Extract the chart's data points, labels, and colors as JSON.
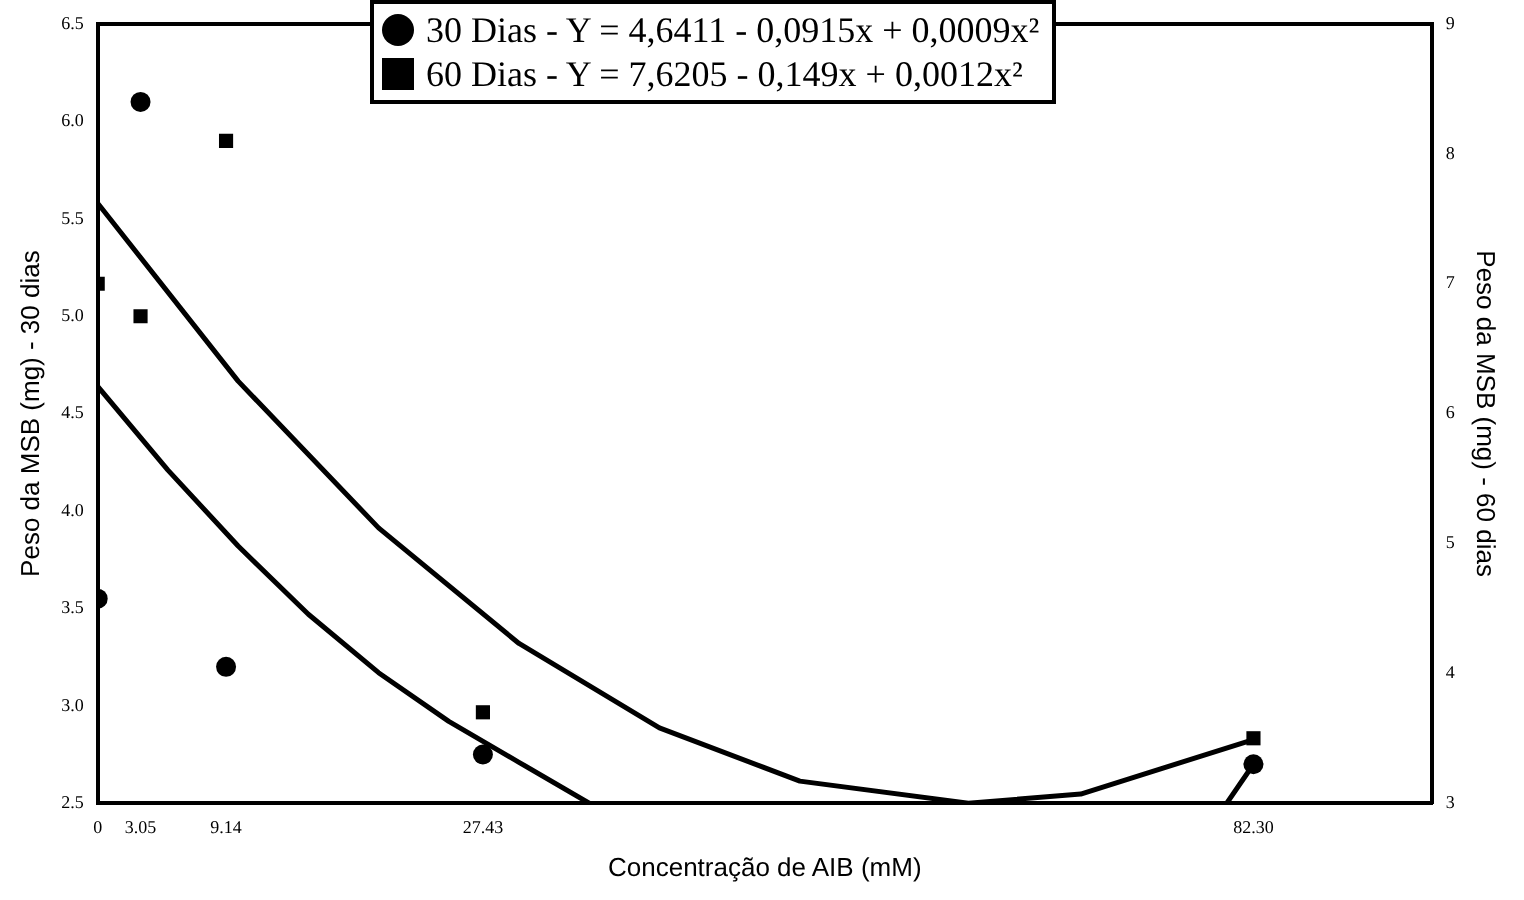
{
  "chart_data": {
    "type": "scatter",
    "xlabel": "Concentração de AIB (mM)",
    "ylabel": "Peso da MSB (mg) - 30 dias",
    "y2label": "Peso da MSB (mg) - 60 dias",
    "xlim": [
      0,
      95
    ],
    "xticks": [
      0,
      {
        "value": 3.05,
        "label": "3.05"
      },
      {
        "value": 9.14,
        "label": "9.14"
      },
      {
        "value": 27.43,
        "label": "27.43"
      },
      {
        "value": 82.3,
        "label": "82.30"
      }
    ],
    "ylim": [
      2.5,
      6.5
    ],
    "yticks": [
      2.5,
      {
        "value": 3,
        "label": "3.0"
      },
      3.5,
      {
        "value": 4,
        "label": "4.0"
      },
      4.5,
      {
        "value": 5,
        "label": "5.0"
      },
      5.5,
      {
        "value": 6,
        "label": "6.0"
      },
      6.5
    ],
    "y2lim": [
      3,
      9
    ],
    "y2ticks": [
      3,
      4,
      5,
      6,
      7,
      8,
      9
    ],
    "grid": false,
    "legend": "top",
    "series": [
      {
        "name": "30 Dias - Y = 4,6411 - 0,0915x + 0,0009x²",
        "color": "#000000",
        "marker": "circle",
        "x": [
          0,
          3.05,
          9.14,
          27.43,
          82.3
        ],
        "values": [
          3.55,
          6.1,
          3.2,
          2.75,
          2.7
        ]
      },
      {
        "name": "60 Dias - Y = 7,6205 - 0,149x + 0,0012x²",
        "color": "#000000",
        "marker": "square",
        "axis": "y2",
        "x": [
          0,
          3.05,
          9.14,
          27.43,
          82.3
        ],
        "values": [
          7.0,
          6.75,
          8.1,
          3.7,
          3.5
        ]
      },
      {
        "type": "line",
        "color": "#000000",
        "marker": "none",
        "x": [
          0,
          5,
          10,
          15,
          20,
          25,
          30,
          35,
          37,
          80.4,
          82.3
        ],
        "values": [
          4.64,
          4.21,
          3.82,
          3.47,
          3.17,
          2.92,
          2.71,
          2.5,
          null,
          2.5,
          2.7
        ]
      },
      {
        "type": "line",
        "color": "#000000",
        "marker": "none",
        "axis": "y2",
        "x": [
          0,
          10,
          20,
          30,
          40,
          50,
          62,
          70,
          82.3
        ],
        "values": [
          7.62,
          6.25,
          5.12,
          4.23,
          3.58,
          3.17,
          3.0,
          3.07,
          3.49
        ]
      }
    ]
  }
}
